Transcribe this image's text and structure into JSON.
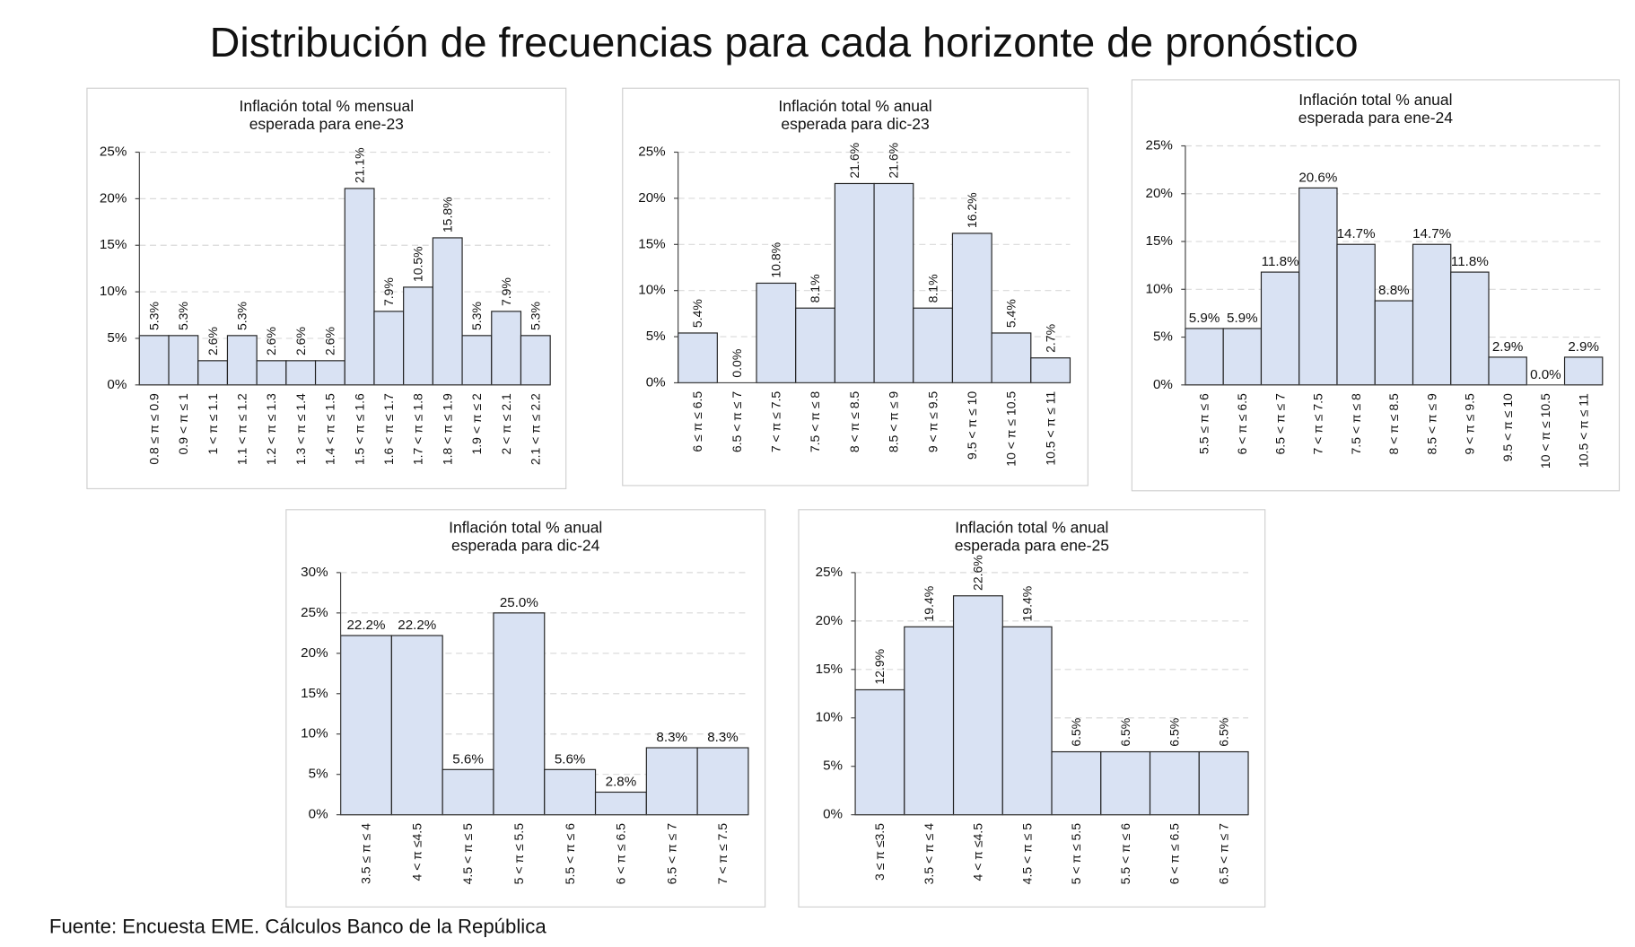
{
  "title": "Distribución de frecuencias para cada horizonte de pronóstico",
  "source": "Fuente: Encuesta EME. Cálculos Banco de la República",
  "chart_data": [
    {
      "type": "bar",
      "title": [
        "Inflación total % mensual",
        "esperada para ene-23"
      ],
      "categories": [
        "0.8 ≤  π ≤ 0.9",
        "0.9 < π ≤ 1",
        "1 < π ≤ 1.1",
        "1.1 < π ≤ 1.2",
        "1.2 < π ≤ 1.3",
        "1.3 < π ≤ 1.4",
        "1.4 < π ≤ 1.5",
        "1.5 < π ≤ 1.6",
        "1.6 < π ≤ 1.7",
        "1.7 < π ≤ 1.8",
        "1.8 < π ≤ 1.9",
        "1.9 < π ≤ 2",
        "2 < π ≤ 2.1",
        "2.1 < π ≤ 2.2"
      ],
      "values": [
        5.3,
        5.3,
        2.6,
        5.3,
        2.6,
        2.6,
        2.6,
        21.1,
        7.9,
        10.5,
        15.8,
        5.3,
        7.9,
        5.3
      ],
      "value_labels": [
        "5.3%",
        "5.3%",
        "2.6%",
        "5.3%",
        "2.6%",
        "2.6%",
        "2.6%",
        "21.1%",
        "7.9%",
        "10.5%",
        "15.8%",
        "5.3%",
        "7.9%",
        "5.3%"
      ],
      "value_label_orientation": "vertical",
      "color": "#d9e2f3",
      "grid": true,
      "ylim": [
        0,
        25
      ],
      "yticks": [
        {
          "value": 0,
          "label": "0%"
        },
        {
          "value": 5,
          "label": "5%"
        },
        {
          "value": 10,
          "label": "10%"
        },
        {
          "value": 15,
          "label": "15%"
        },
        {
          "value": 20,
          "label": "20%"
        },
        {
          "value": 25,
          "label": "25%"
        }
      ]
    },
    {
      "type": "bar",
      "title": [
        "Inflación total % anual",
        "esperada para dic-23"
      ],
      "categories": [
        "6 ≤  π ≤ 6.5",
        "6.5 < π ≤ 7",
        "7 < π ≤ 7.5",
        "7.5 < π ≤ 8",
        "8 < π ≤ 8.5",
        "8.5 < π ≤ 9",
        "9 < π ≤ 9.5",
        "9.5 < π ≤ 10",
        "10 < π ≤ 10.5",
        "10.5 < π ≤ 11"
      ],
      "values": [
        5.4,
        0,
        10.8,
        8.1,
        21.6,
        21.6,
        8.1,
        16.2,
        5.4,
        2.7
      ],
      "value_labels": [
        "5.4%",
        "0.0%",
        "10.8%",
        "8.1%",
        "21.6%",
        "21.6%",
        "8.1%",
        "16.2%",
        "5.4%",
        "2.7%"
      ],
      "value_label_orientation": "vertical",
      "color": "#d9e2f3",
      "grid": true,
      "ylim": [
        0,
        25
      ],
      "yticks": [
        {
          "value": 0,
          "label": "0%"
        },
        {
          "value": 5,
          "label": "5%"
        },
        {
          "value": 10,
          "label": "10%"
        },
        {
          "value": 15,
          "label": "15%"
        },
        {
          "value": 20,
          "label": "20%"
        },
        {
          "value": 25,
          "label": "25%"
        }
      ]
    },
    {
      "type": "bar",
      "title": [
        "Inflación total % anual",
        "esperada para ene-24"
      ],
      "categories": [
        "5.5 ≤  π ≤ 6",
        "6 < π ≤ 6.5",
        "6.5 < π ≤ 7",
        "7 < π ≤ 7.5",
        "7.5 < π ≤ 8",
        "8 < π ≤ 8.5",
        "8.5 < π ≤ 9",
        "9 < π ≤ 9.5",
        "9.5 < π ≤ 10",
        "10 < π ≤ 10.5",
        "10.5 < π ≤ 11"
      ],
      "values": [
        5.9,
        5.9,
        11.8,
        20.6,
        14.7,
        8.8,
        14.7,
        11.8,
        2.9,
        0,
        2.9
      ],
      "value_labels": [
        "5.9%",
        "5.9%",
        "11.8%",
        "20.6%",
        "14.7%",
        "8.8%",
        "14.7%",
        "11.8%",
        "2.9%",
        "0.0%",
        "2.9%"
      ],
      "value_label_orientation": "horizontal",
      "color": "#d9e2f3",
      "grid": true,
      "ylim": [
        0,
        25
      ],
      "yticks": [
        {
          "value": 0,
          "label": "0%"
        },
        {
          "value": 5,
          "label": "5%"
        },
        {
          "value": 10,
          "label": "10%"
        },
        {
          "value": 15,
          "label": "15%"
        },
        {
          "value": 20,
          "label": "20%"
        },
        {
          "value": 25,
          "label": "25%"
        }
      ]
    },
    {
      "type": "bar",
      "title": [
        "Inflación total % anual",
        "esperada para dic-24"
      ],
      "categories": [
        "3.5 ≤  π ≤ 4",
        "4 < π ≤4.5",
        "4.5 < π ≤ 5",
        "5 < π ≤ 5.5",
        "5.5 < π ≤ 6",
        "6 < π ≤ 6.5",
        "6.5 < π ≤ 7",
        "7 < π ≤ 7.5"
      ],
      "values": [
        22.2,
        22.2,
        5.6,
        25.0,
        5.6,
        2.8,
        8.3,
        8.3
      ],
      "value_labels": [
        "22.2%",
        "22.2%",
        "5.6%",
        "25.0%",
        "5.6%",
        "2.8%",
        "8.3%",
        "8.3%"
      ],
      "value_label_orientation": "horizontal",
      "color": "#d9e2f3",
      "grid": true,
      "ylim": [
        0,
        30
      ],
      "yticks": [
        {
          "value": 0,
          "label": "0%"
        },
        {
          "value": 5,
          "label": "5%"
        },
        {
          "value": 10,
          "label": "10%"
        },
        {
          "value": 15,
          "label": "15%"
        },
        {
          "value": 20,
          "label": "20%"
        },
        {
          "value": 25,
          "label": "25%"
        },
        {
          "value": 30,
          "label": "30%"
        }
      ]
    },
    {
      "type": "bar",
      "title": [
        "Inflación total % anual",
        "esperada para ene-25"
      ],
      "categories": [
        "3 ≤  π ≤3.5",
        "3.5 < π ≤ 4",
        "4 < π ≤4.5",
        "4.5 < π ≤ 5",
        "5 < π ≤ 5.5",
        "5.5 < π ≤ 6",
        "6 < π ≤ 6.5",
        "6.5 < π ≤ 7"
      ],
      "values": [
        12.9,
        19.4,
        22.6,
        19.4,
        6.5,
        6.5,
        6.5,
        6.5
      ],
      "value_labels": [
        "12.9%",
        "19.4%",
        "22.6%",
        "19.4%",
        "6.5%",
        "6.5%",
        "6.5%",
        "6.5%"
      ],
      "value_label_orientation": "vertical",
      "color": "#d9e2f3",
      "grid": true,
      "ylim": [
        0,
        25
      ],
      "yticks": [
        {
          "value": 0,
          "label": "0%"
        },
        {
          "value": 5,
          "label": "5%"
        },
        {
          "value": 10,
          "label": "10%"
        },
        {
          "value": 15,
          "label": "15%"
        },
        {
          "value": 20,
          "label": "20%"
        },
        {
          "value": 25,
          "label": "25%"
        }
      ]
    }
  ]
}
